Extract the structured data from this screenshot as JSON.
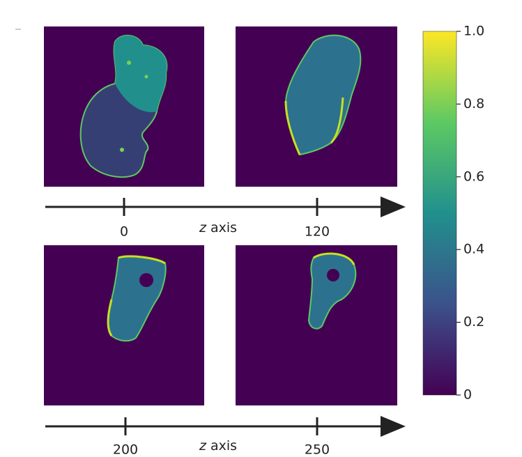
{
  "chart_data": {
    "type": "heatmap-slices",
    "colorbar": {
      "ylim": [
        0,
        1
      ],
      "yticks": [
        0,
        0.2,
        0.4,
        0.6,
        0.8,
        {
          "value": 1,
          "label": "1.0"
        }
      ],
      "colors": [
        "#440154",
        "#3b528b",
        "#21908d",
        "#5dc963",
        "#fde725"
      ]
    },
    "rows": [
      {
        "xlabel": "z axis",
        "ticks": [
          0,
          120
        ]
      },
      {
        "xlabel": "z axis",
        "ticks": [
          200,
          250
        ]
      }
    ]
  }
}
